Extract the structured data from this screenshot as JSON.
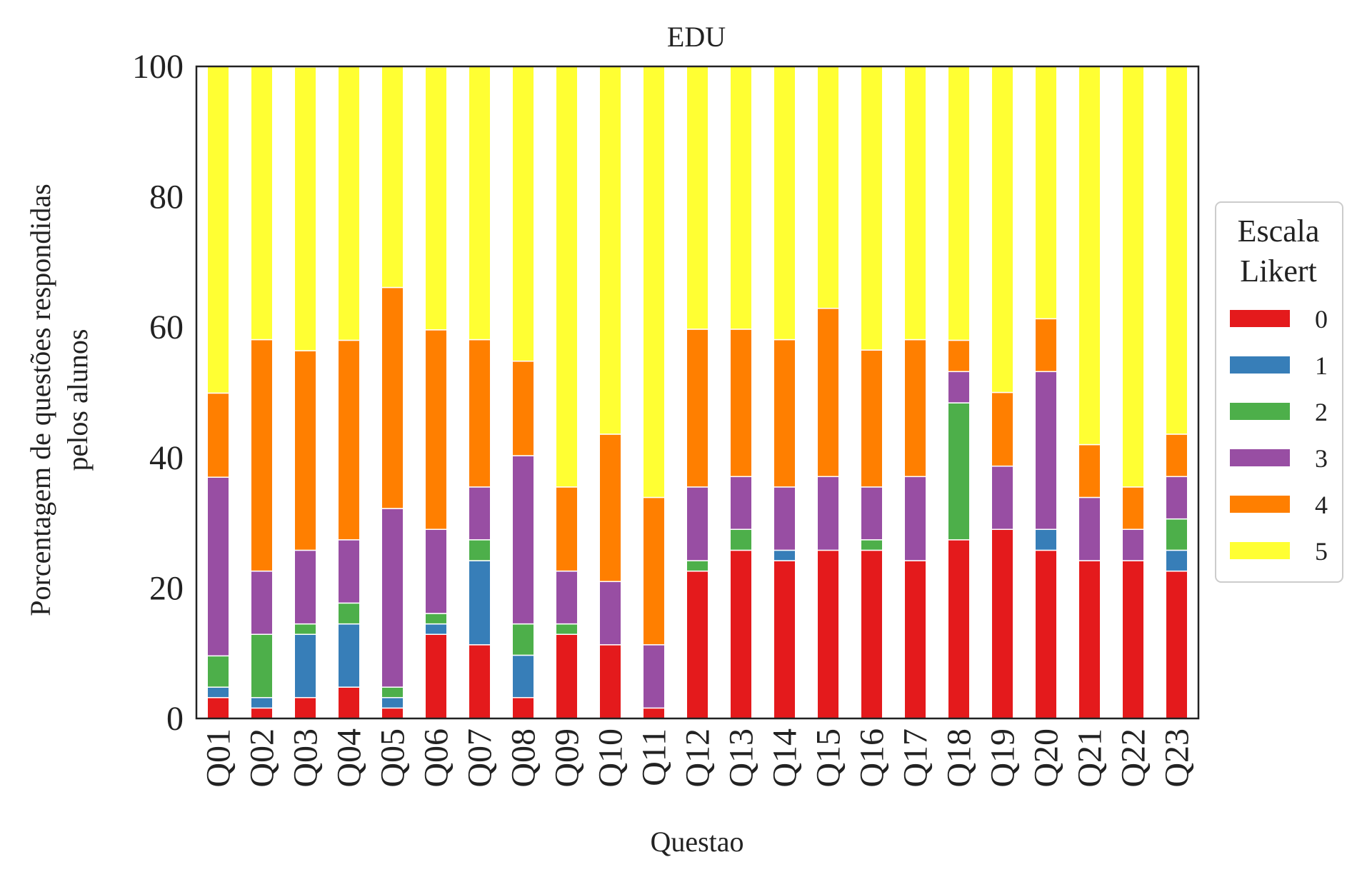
{
  "chart_data": {
    "type": "bar",
    "stacked": true,
    "title": "EDU",
    "xlabel": "Questao",
    "ylabel_line1": "Porcentagem de questões respondidas",
    "ylabel_line2": "pelos alunos",
    "ylim": [
      0,
      100
    ],
    "yticks": [
      "0",
      "20",
      "40",
      "60",
      "80",
      "100"
    ],
    "grid": false,
    "legend_position": "center-right, outside plot",
    "legend_title_line1": "Escala",
    "legend_title_line2": "Likert",
    "categories": [
      "Q01",
      "Q02",
      "Q03",
      "Q04",
      "Q05",
      "Q06",
      "Q07",
      "Q08",
      "Q09",
      "Q10",
      "Q11",
      "Q12",
      "Q13",
      "Q14",
      "Q15",
      "Q16",
      "Q17",
      "Q18",
      "Q19",
      "Q20",
      "Q21",
      "Q22",
      "Q23"
    ],
    "series": [
      {
        "name": "0",
        "color": "#e41a1c",
        "values": [
          3.2,
          1.6,
          3.2,
          4.8,
          1.6,
          12.9,
          11.3,
          3.2,
          12.9,
          11.3,
          1.6,
          22.6,
          25.8,
          24.2,
          25.8,
          25.8,
          24.2,
          27.4,
          29.0,
          25.8,
          24.2,
          24.2,
          22.6
        ]
      },
      {
        "name": "1",
        "color": "#377eb8",
        "values": [
          1.6,
          1.6,
          9.7,
          9.7,
          1.6,
          1.6,
          12.9,
          6.5,
          0,
          0,
          0,
          0,
          0,
          1.6,
          0,
          0,
          0,
          0,
          0,
          3.2,
          0,
          0,
          3.2
        ]
      },
      {
        "name": "2",
        "color": "#4daf4a",
        "values": [
          4.8,
          9.7,
          1.6,
          3.2,
          1.6,
          1.6,
          3.2,
          4.8,
          1.6,
          0,
          0,
          1.6,
          3.2,
          0,
          0,
          1.6,
          0,
          21.0,
          0,
          0,
          0,
          0,
          4.8
        ]
      },
      {
        "name": "3",
        "color": "#984ea3",
        "values": [
          27.4,
          9.7,
          11.3,
          9.7,
          27.4,
          12.9,
          8.1,
          25.8,
          8.1,
          9.7,
          9.7,
          11.3,
          8.1,
          9.7,
          11.3,
          8.1,
          12.9,
          4.8,
          9.7,
          24.2,
          9.7,
          4.8,
          6.5
        ]
      },
      {
        "name": "4",
        "color": "#ff7f00",
        "values": [
          12.9,
          35.5,
          30.6,
          30.6,
          33.9,
          30.6,
          22.6,
          14.5,
          12.9,
          22.6,
          22.6,
          24.2,
          22.6,
          22.6,
          25.8,
          21.0,
          21.0,
          4.8,
          11.3,
          8.1,
          8.1,
          6.5,
          6.5
        ]
      },
      {
        "name": "5",
        "color": "#ffff33",
        "values": [
          50.1,
          41.9,
          43.5,
          42.0,
          33.9,
          40.3,
          41.9,
          45.2,
          64.5,
          56.4,
          66.1,
          40.3,
          40.3,
          41.9,
          37.1,
          43.5,
          41.9,
          42.0,
          50.0,
          38.7,
          58.0,
          64.5,
          56.4
        ]
      }
    ]
  }
}
